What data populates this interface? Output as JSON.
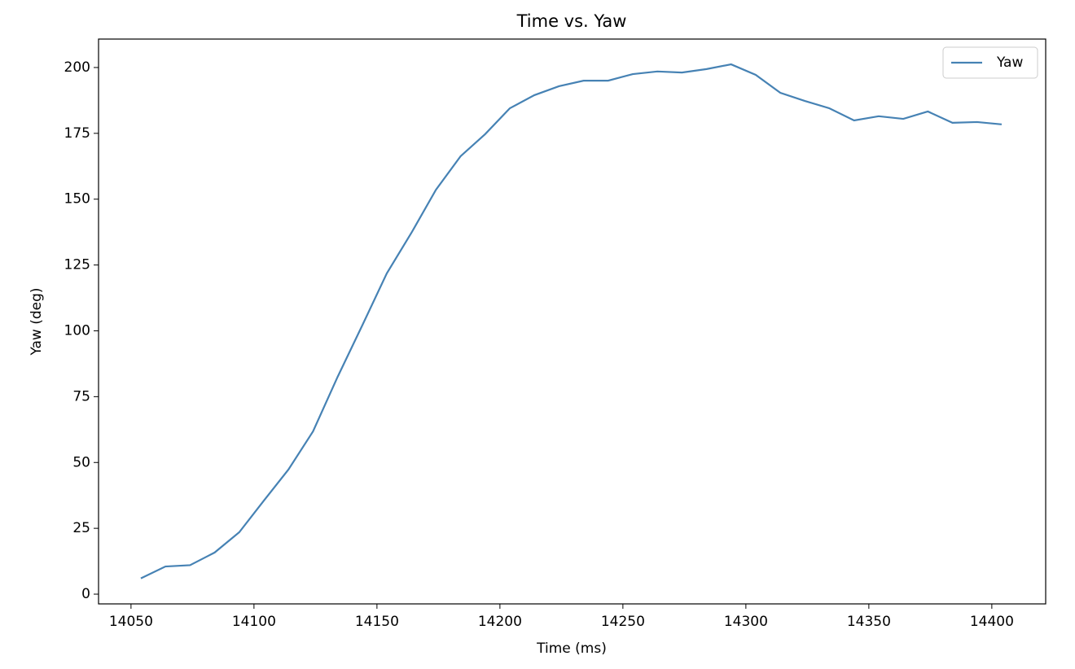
{
  "chart_data": {
    "type": "line",
    "title": "Time vs. Yaw",
    "x_label": "Time (ms)",
    "y_label": "Yaw (deg)",
    "x": [
      14054,
      14064,
      14074,
      14084,
      14094,
      14104,
      14114,
      14124,
      14134,
      14144,
      14154,
      14164,
      14174,
      14184,
      14194,
      14204,
      14214,
      14224,
      14234,
      14244,
      14254,
      14264,
      14274,
      14284,
      14294,
      14304,
      14314,
      14324,
      14334,
      14344,
      14354,
      14364,
      14374,
      14384,
      14394,
      14404
    ],
    "series": [
      {
        "name": "Yaw",
        "color": "#4682b4",
        "values": [
          6,
          10.5,
          11,
          15.8,
          23.5,
          35.5,
          47.3,
          61.8,
          82.5,
          102,
          121.8,
          137.2,
          153.6,
          166.3,
          174.7,
          184.5,
          189.5,
          192.9,
          195,
          195,
          197.5,
          198.5,
          198.1,
          199.4,
          201.2,
          197.2,
          190.4,
          187.3,
          184.5,
          179.9,
          181.5,
          180.5,
          183.3,
          179,
          179.3,
          178.4
        ]
      }
    ],
    "xlim": [
      14036.8,
      14421.9
    ],
    "xticks": [
      14050,
      14100,
      14150,
      14200,
      14250,
      14300,
      14350,
      14400
    ],
    "ylim": [
      -3.7,
      210.8
    ],
    "yticks": [
      0,
      25,
      50,
      75,
      100,
      125,
      150,
      175,
      200
    ],
    "legend": "upper right"
  }
}
